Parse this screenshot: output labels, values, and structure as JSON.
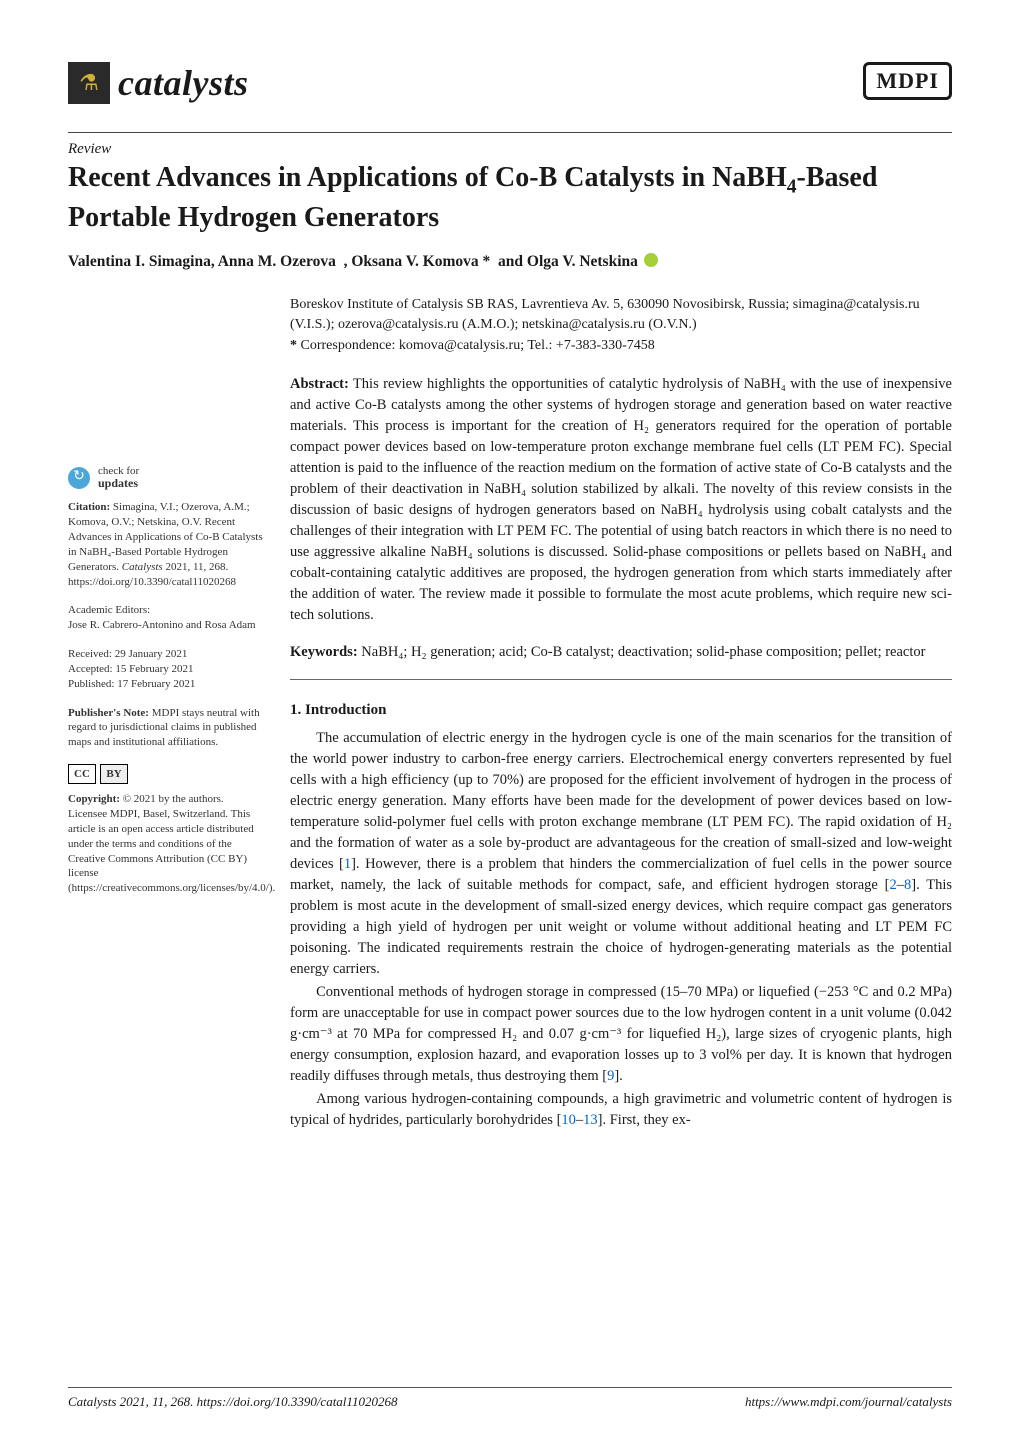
{
  "journal": {
    "name": "catalysts",
    "publisher_logo": "MDPI"
  },
  "article": {
    "type": "Review",
    "title_pre": "Recent Advances in Applications of Co-B Catalysts in NaBH",
    "title_sub": "4",
    "title_post": "-Based Portable Hydrogen Generators",
    "authors": "Valentina I. Simagina, Anna M. Ozerova  , Oksana V. Komova *  and Olga V. Netskina",
    "affiliation": "Boreskov Institute of Catalysis SB RAS, Lavrentieva Av. 5, 630090 Novosibirsk, Russia; simagina@catalysis.ru (V.I.S.); ozerova@catalysis.ru (A.M.O.); netskina@catalysis.ru (O.V.N.)",
    "correspondence": "Correspondence: komova@catalysis.ru; Tel.: +7-383-330-7458"
  },
  "abstract": {
    "label": "Abstract:",
    "text": " This review highlights the opportunities of catalytic hydrolysis of NaBH₄ with the use of inexpensive and active Co-B catalysts among the other systems of hydrogen storage and generation based on water reactive materials. This process is important for the creation of H₂ generators required for the operation of portable compact power devices based on low-temperature proton exchange membrane fuel cells (LT PEM FC). Special attention is paid to the influence of the reaction medium on the formation of active state of Co-B catalysts and the problem of their deactivation in NaBH₄ solution stabilized by alkali. The novelty of this review consists in the discussion of basic designs of hydrogen generators based on NaBH₄ hydrolysis using cobalt catalysts and the challenges of their integration with LT PEM FC. The potential of using batch reactors in which there is no need to use aggressive alkaline NaBH₄ solutions is discussed. Solid-phase compositions or pellets based on NaBH₄ and cobalt-containing catalytic additives are proposed, the hydrogen generation from which starts immediately after the addition of water. The review made it possible to formulate the most acute problems, which require new sci-tech solutions."
  },
  "keywords": {
    "label": "Keywords:",
    "text": " NaBH₄; H₂ generation; acid; Co-B catalyst; deactivation; solid-phase composition; pellet; reactor"
  },
  "sidebar": {
    "check_line1": "check for",
    "check_line2": "updates",
    "citation_label": "Citation:",
    "citation": " Simagina, V.I.; Ozerova, A.M.; Komova, O.V.; Netskina, O.V. Recent Advances in Applications of Co-B Catalysts in NaBH₄-Based Portable Hydrogen Generators. ",
    "citation_journal": "Catalysts",
    "citation_issue": " 2021, 11, 268. https://doi.org/10.3390/catal11020268",
    "editors_label": "Academic Editors:",
    "editors": "Jose R. Cabrero-Antonino and Rosa Adam",
    "received": "Received: 29 January 2021",
    "accepted": "Accepted: 15 February 2021",
    "published": "Published: 17 February 2021",
    "note_label": "Publisher's Note:",
    "note": " MDPI stays neutral with regard to jurisdictional claims in published maps and institutional affiliations.",
    "cc_label": "CC",
    "by_label": "BY",
    "copyright_label": "Copyright:",
    "copyright": " © 2021 by the authors. Licensee MDPI, Basel, Switzerland. This article is an open access article distributed under the terms and conditions of the Creative Commons Attribution (CC BY) license (https://creativecommons.org/licenses/by/4.0/)."
  },
  "body": {
    "section1_title": "1. Introduction",
    "p1": "The accumulation of electric energy in the hydrogen cycle is one of the main scenarios for the transition of the world power industry to carbon-free energy carriers. Electrochemical energy converters represented by fuel cells with a high efficiency (up to 70%) are proposed for the efficient involvement of hydrogen in the process of electric energy generation. Many efforts have been made for the development of power devices based on low-temperature solid-polymer fuel cells with proton exchange membrane (LT PEM FC). The rapid oxidation of H₂ and the formation of water as a sole by-product are advantageous for the creation of small-sized and low-weight devices [",
    "p1_ref1": "1",
    "p1b": "]. However, there is a problem that hinders the commercialization of fuel cells in the power source market, namely, the lack of suitable methods for compact, safe, and efficient hydrogen storage [",
    "p1_ref2": "2",
    "p1_dash": "–",
    "p1_ref3": "8",
    "p1c": "]. This problem is most acute in the development of small-sized energy devices, which require compact gas generators providing a high yield of hydrogen per unit weight or volume without additional heating and LT PEM FC poisoning. The indicated requirements restrain the choice of hydrogen-generating materials as the potential energy carriers.",
    "p2": "Conventional methods of hydrogen storage in compressed (15–70 MPa) or liquefied (−253 °C and 0.2 MPa) form are unacceptable for use in compact power sources due to the low hydrogen content in a unit volume (0.042 g·cm⁻³ at 70 MPa for compressed H₂ and 0.07 g·cm⁻³ for liquefied H₂), large sizes of cryogenic plants, high energy consumption, explosion hazard, and evaporation losses up to 3 vol% per day. It is known that hydrogen readily diffuses through metals, thus destroying them [",
    "p2_ref": "9",
    "p2b": "].",
    "p3": "Among various hydrogen-containing compounds, a high gravimetric and volumetric content of hydrogen is typical of hydrides, particularly borohydrides [",
    "p3_ref1": "10",
    "p3_dash": "–",
    "p3_ref2": "13",
    "p3b": "]. First, they ex-"
  },
  "footer": {
    "left": "Catalysts 2021, 11, 268. https://doi.org/10.3390/catal11020268",
    "right": "https://www.mdpi.com/journal/catalysts"
  },
  "colors": {
    "text": "#1a1a1a",
    "link": "#0066cc",
    "orcid": "#a6ce39",
    "check_icon_bg": "#4da6d9"
  }
}
